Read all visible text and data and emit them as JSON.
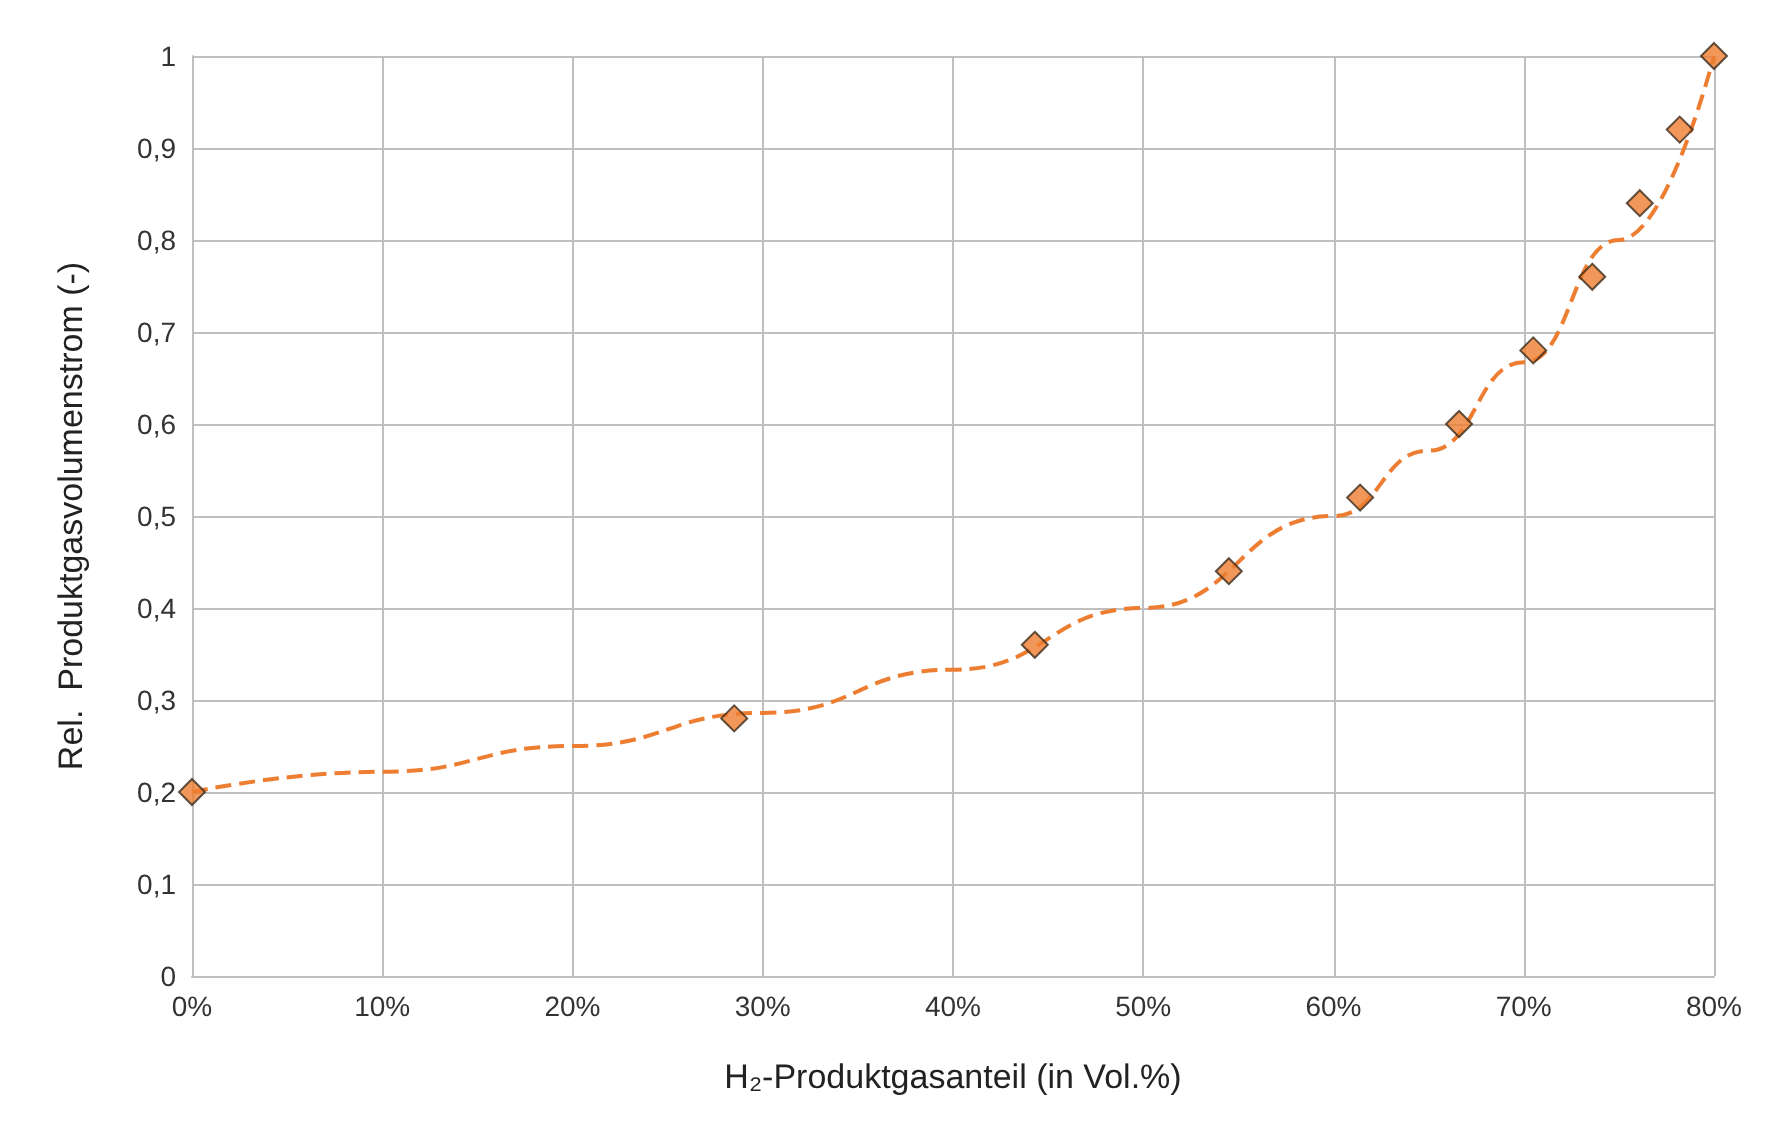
{
  "chart_data": {
    "type": "scatter",
    "xlabel": "H₂-Produktgasanteil (in Vol.%)",
    "ylabel": "Rel.  Produktgasvolumenstrom (-)",
    "xlim": [
      0,
      80
    ],
    "ylim": [
      0,
      1
    ],
    "xticks": [
      {
        "value": 0,
        "label": "0%"
      },
      {
        "value": 10,
        "label": "10%"
      },
      {
        "value": 20,
        "label": "20%"
      },
      {
        "value": 30,
        "label": "30%"
      },
      {
        "value": 40,
        "label": "40%"
      },
      {
        "value": 50,
        "label": "50%"
      },
      {
        "value": 60,
        "label": "60%"
      },
      {
        "value": 70,
        "label": "70%"
      },
      {
        "value": 80,
        "label": "80%"
      }
    ],
    "yticks": [
      {
        "value": 0,
        "label": "0"
      },
      {
        "value": 0.1,
        "label": "0,1"
      },
      {
        "value": 0.2,
        "label": "0,2"
      },
      {
        "value": 0.3,
        "label": "0,3"
      },
      {
        "value": 0.4,
        "label": "0,4"
      },
      {
        "value": 0.5,
        "label": "0,5"
      },
      {
        "value": 0.6,
        "label": "0,6"
      },
      {
        "value": 0.7,
        "label": "0,7"
      },
      {
        "value": 0.8,
        "label": "0,8"
      },
      {
        "value": 0.9,
        "label": "0,9"
      },
      {
        "value": 1,
        "label": "1"
      }
    ],
    "grid": true,
    "series": [
      {
        "type": "line",
        "color": "#ed7d31",
        "line_style": "dashed",
        "marker": "none",
        "x": [
          0,
          10,
          20,
          30,
          40,
          50,
          60,
          65,
          70,
          75,
          80
        ],
        "values": [
          0.2,
          0.222,
          0.25,
          0.286,
          0.333,
          0.4,
          0.5,
          0.571,
          0.667,
          0.8,
          1.0
        ]
      },
      {
        "color": "#ed7d31",
        "marker": "diamond",
        "x": [
          0,
          28.5,
          44.3,
          54.5,
          61.4,
          66.6,
          70.5,
          73.6,
          76.1,
          78.2,
          80
        ],
        "values": [
          0.2,
          0.28,
          0.36,
          0.44,
          0.52,
          0.6,
          0.68,
          0.76,
          0.84,
          0.92,
          1.0
        ]
      }
    ]
  }
}
